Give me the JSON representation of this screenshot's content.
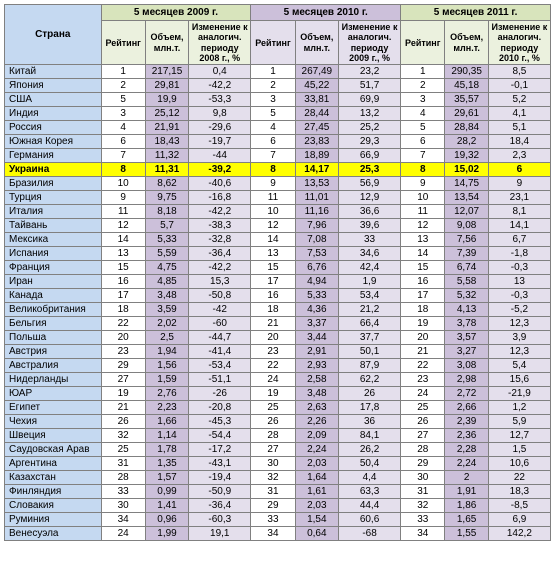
{
  "columns": {
    "country_header": "Страна",
    "rating": "Рейтинг",
    "volume": "Объем,\nмлн.т.",
    "change_label_prefix": "Изменение к\nаналогич.\nпериоду"
  },
  "years": [
    {
      "title": "5 месяцев 2009 г.",
      "bg": "#d8e4bc",
      "sub_bg": "#ebf1de",
      "prev_year": "2008 г., %"
    },
    {
      "title": "5 месяцев 2010 г.",
      "bg": "#ccc0da",
      "sub_bg": "#e4dfec",
      "prev_year": "2009 г., %"
    },
    {
      "title": "5 месяцев 2011 г.",
      "bg": "#d8e4bc",
      "sub_bg": "#ebf1de",
      "prev_year": "2010 г., %"
    }
  ],
  "col_colors": {
    "rating_bg": "#ffffff",
    "volume_bg_a": "#ccc0da",
    "volume_bg_b": "#d8e4bc",
    "change_bg_a": "#e4dfec",
    "change_bg_b": "#ebf1de"
  },
  "highlight_country": "Украина",
  "rows": [
    {
      "country": "Китай",
      "y": [
        [
          1,
          "217,15",
          "0,4"
        ],
        [
          1,
          "267,49",
          "23,2"
        ],
        [
          1,
          "290,35",
          "8,5"
        ]
      ]
    },
    {
      "country": "Япония",
      "y": [
        [
          2,
          "29,81",
          "-42,2"
        ],
        [
          2,
          "45,22",
          "51,7"
        ],
        [
          2,
          "45,18",
          "-0,1"
        ]
      ]
    },
    {
      "country": "США",
      "y": [
        [
          5,
          "19,9",
          "-53,3"
        ],
        [
          3,
          "33,81",
          "69,9"
        ],
        [
          3,
          "35,57",
          "5,2"
        ]
      ]
    },
    {
      "country": "Индия",
      "y": [
        [
          3,
          "25,12",
          "9,8"
        ],
        [
          5,
          "28,44",
          "13,2"
        ],
        [
          4,
          "29,61",
          "4,1"
        ]
      ]
    },
    {
      "country": "Россия",
      "y": [
        [
          4,
          "21,91",
          "-29,6"
        ],
        [
          4,
          "27,45",
          "25,2"
        ],
        [
          5,
          "28,84",
          "5,1"
        ]
      ]
    },
    {
      "country": "Южная Корея",
      "y": [
        [
          6,
          "18,43",
          "-19,7"
        ],
        [
          6,
          "23,83",
          "29,3"
        ],
        [
          6,
          "28,2",
          "18,4"
        ]
      ]
    },
    {
      "country": "Германия",
      "y": [
        [
          7,
          "11,32",
          "-44"
        ],
        [
          7,
          "18,89",
          "66,9"
        ],
        [
          7,
          "19,32",
          "2,3"
        ]
      ]
    },
    {
      "country": "Украина",
      "y": [
        [
          8,
          "11,31",
          "-39,2"
        ],
        [
          8,
          "14,17",
          "25,3"
        ],
        [
          8,
          "15,02",
          "6"
        ]
      ]
    },
    {
      "country": "Бразилия",
      "y": [
        [
          10,
          "8,62",
          "-40,6"
        ],
        [
          9,
          "13,53",
          "56,9"
        ],
        [
          9,
          "14,75",
          "9"
        ]
      ]
    },
    {
      "country": "Турция",
      "y": [
        [
          9,
          "9,75",
          "-16,8"
        ],
        [
          11,
          "11,01",
          "12,9"
        ],
        [
          10,
          "13,54",
          "23,1"
        ]
      ]
    },
    {
      "country": "Италия",
      "y": [
        [
          11,
          "8,18",
          "-42,2"
        ],
        [
          10,
          "11,16",
          "36,6"
        ],
        [
          11,
          "12,07",
          "8,1"
        ]
      ]
    },
    {
      "country": "Тайвань",
      "y": [
        [
          12,
          "5,7",
          "-38,3"
        ],
        [
          12,
          "7,96",
          "39,6"
        ],
        [
          12,
          "9,08",
          "14,1"
        ]
      ]
    },
    {
      "country": "Мексика",
      "y": [
        [
          14,
          "5,33",
          "-32,8"
        ],
        [
          14,
          "7,08",
          "33"
        ],
        [
          13,
          "7,56",
          "6,7"
        ]
      ]
    },
    {
      "country": "Испания",
      "y": [
        [
          13,
          "5,59",
          "-36,4"
        ],
        [
          13,
          "7,53",
          "34,6"
        ],
        [
          14,
          "7,39",
          "-1,8"
        ]
      ]
    },
    {
      "country": "Франция",
      "y": [
        [
          15,
          "4,75",
          "-42,2"
        ],
        [
          15,
          "6,76",
          "42,4"
        ],
        [
          15,
          "6,74",
          "-0,3"
        ]
      ]
    },
    {
      "country": "Иран",
      "y": [
        [
          16,
          "4,85",
          "15,3"
        ],
        [
          17,
          "4,94",
          "1,9"
        ],
        [
          16,
          "5,58",
          "13"
        ]
      ]
    },
    {
      "country": "Канада",
      "y": [
        [
          17,
          "3,48",
          "-50,8"
        ],
        [
          16,
          "5,33",
          "53,4"
        ],
        [
          17,
          "5,32",
          "-0,3"
        ]
      ]
    },
    {
      "country": "Великобритания",
      "y": [
        [
          18,
          "3,59",
          "-42"
        ],
        [
          18,
          "4,36",
          "21,2"
        ],
        [
          18,
          "4,13",
          "-5,2"
        ]
      ]
    },
    {
      "country": "Бельгия",
      "y": [
        [
          22,
          "2,02",
          "-60"
        ],
        [
          21,
          "3,37",
          "66,4"
        ],
        [
          19,
          "3,78",
          "12,3"
        ]
      ]
    },
    {
      "country": "Польша",
      "y": [
        [
          20,
          "2,5",
          "-44,7"
        ],
        [
          20,
          "3,44",
          "37,7"
        ],
        [
          20,
          "3,57",
          "3,9"
        ]
      ]
    },
    {
      "country": "Австрия",
      "y": [
        [
          23,
          "1,94",
          "-41,4"
        ],
        [
          23,
          "2,91",
          "50,1"
        ],
        [
          21,
          "3,27",
          "12,3"
        ]
      ]
    },
    {
      "country": "Австралия",
      "y": [
        [
          29,
          "1,56",
          "-53,4"
        ],
        [
          22,
          "2,93",
          "87,9"
        ],
        [
          22,
          "3,08",
          "5,4"
        ]
      ]
    },
    {
      "country": "Нидерланды",
      "y": [
        [
          27,
          "1,59",
          "-51,1"
        ],
        [
          24,
          "2,58",
          "62,2"
        ],
        [
          23,
          "2,98",
          "15,6"
        ]
      ]
    },
    {
      "country": "ЮАР",
      "y": [
        [
          19,
          "2,76",
          "-26"
        ],
        [
          19,
          "3,48",
          "26"
        ],
        [
          24,
          "2,72",
          "-21,9"
        ]
      ]
    },
    {
      "country": "Египет",
      "y": [
        [
          21,
          "2,23",
          "-20,8"
        ],
        [
          25,
          "2,63",
          "17,8"
        ],
        [
          25,
          "2,66",
          "1,2"
        ]
      ]
    },
    {
      "country": "Чехия",
      "y": [
        [
          26,
          "1,66",
          "-45,3"
        ],
        [
          26,
          "2,26",
          "36"
        ],
        [
          26,
          "2,39",
          "5,9"
        ]
      ]
    },
    {
      "country": "Швеция",
      "y": [
        [
          32,
          "1,14",
          "-54,4"
        ],
        [
          28,
          "2,09",
          "84,1"
        ],
        [
          27,
          "2,36",
          "12,7"
        ]
      ]
    },
    {
      "country": "Саудовская Арав",
      "y": [
        [
          25,
          "1,78",
          "-17,2"
        ],
        [
          27,
          "2,24",
          "26,2"
        ],
        [
          28,
          "2,28",
          "1,5"
        ]
      ]
    },
    {
      "country": "Аргентина",
      "y": [
        [
          31,
          "1,35",
          "-43,1"
        ],
        [
          30,
          "2,03",
          "50,4"
        ],
        [
          29,
          "2,24",
          "10,6"
        ]
      ]
    },
    {
      "country": "Казахстан",
      "y": [
        [
          28,
          "1,57",
          "-19,4"
        ],
        [
          32,
          "1,64",
          "4,4"
        ],
        [
          30,
          "2",
          "22"
        ]
      ]
    },
    {
      "country": "Финляндия",
      "y": [
        [
          33,
          "0,99",
          "-50,9"
        ],
        [
          31,
          "1,61",
          "63,3"
        ],
        [
          31,
          "1,91",
          "18,3"
        ]
      ]
    },
    {
      "country": "Словакия",
      "y": [
        [
          30,
          "1,41",
          "-36,4"
        ],
        [
          29,
          "2,03",
          "44,4"
        ],
        [
          32,
          "1,86",
          "-8,5"
        ]
      ]
    },
    {
      "country": "Руминия",
      "y": [
        [
          34,
          "0,96",
          "-60,3"
        ],
        [
          33,
          "1,54",
          "60,6"
        ],
        [
          33,
          "1,65",
          "6,9"
        ]
      ]
    },
    {
      "country": "Венесуэла",
      "y": [
        [
          24,
          "1,99",
          "19,1"
        ],
        [
          34,
          "0,64",
          "-68"
        ],
        [
          34,
          "1,55",
          "142,2"
        ]
      ]
    }
  ]
}
